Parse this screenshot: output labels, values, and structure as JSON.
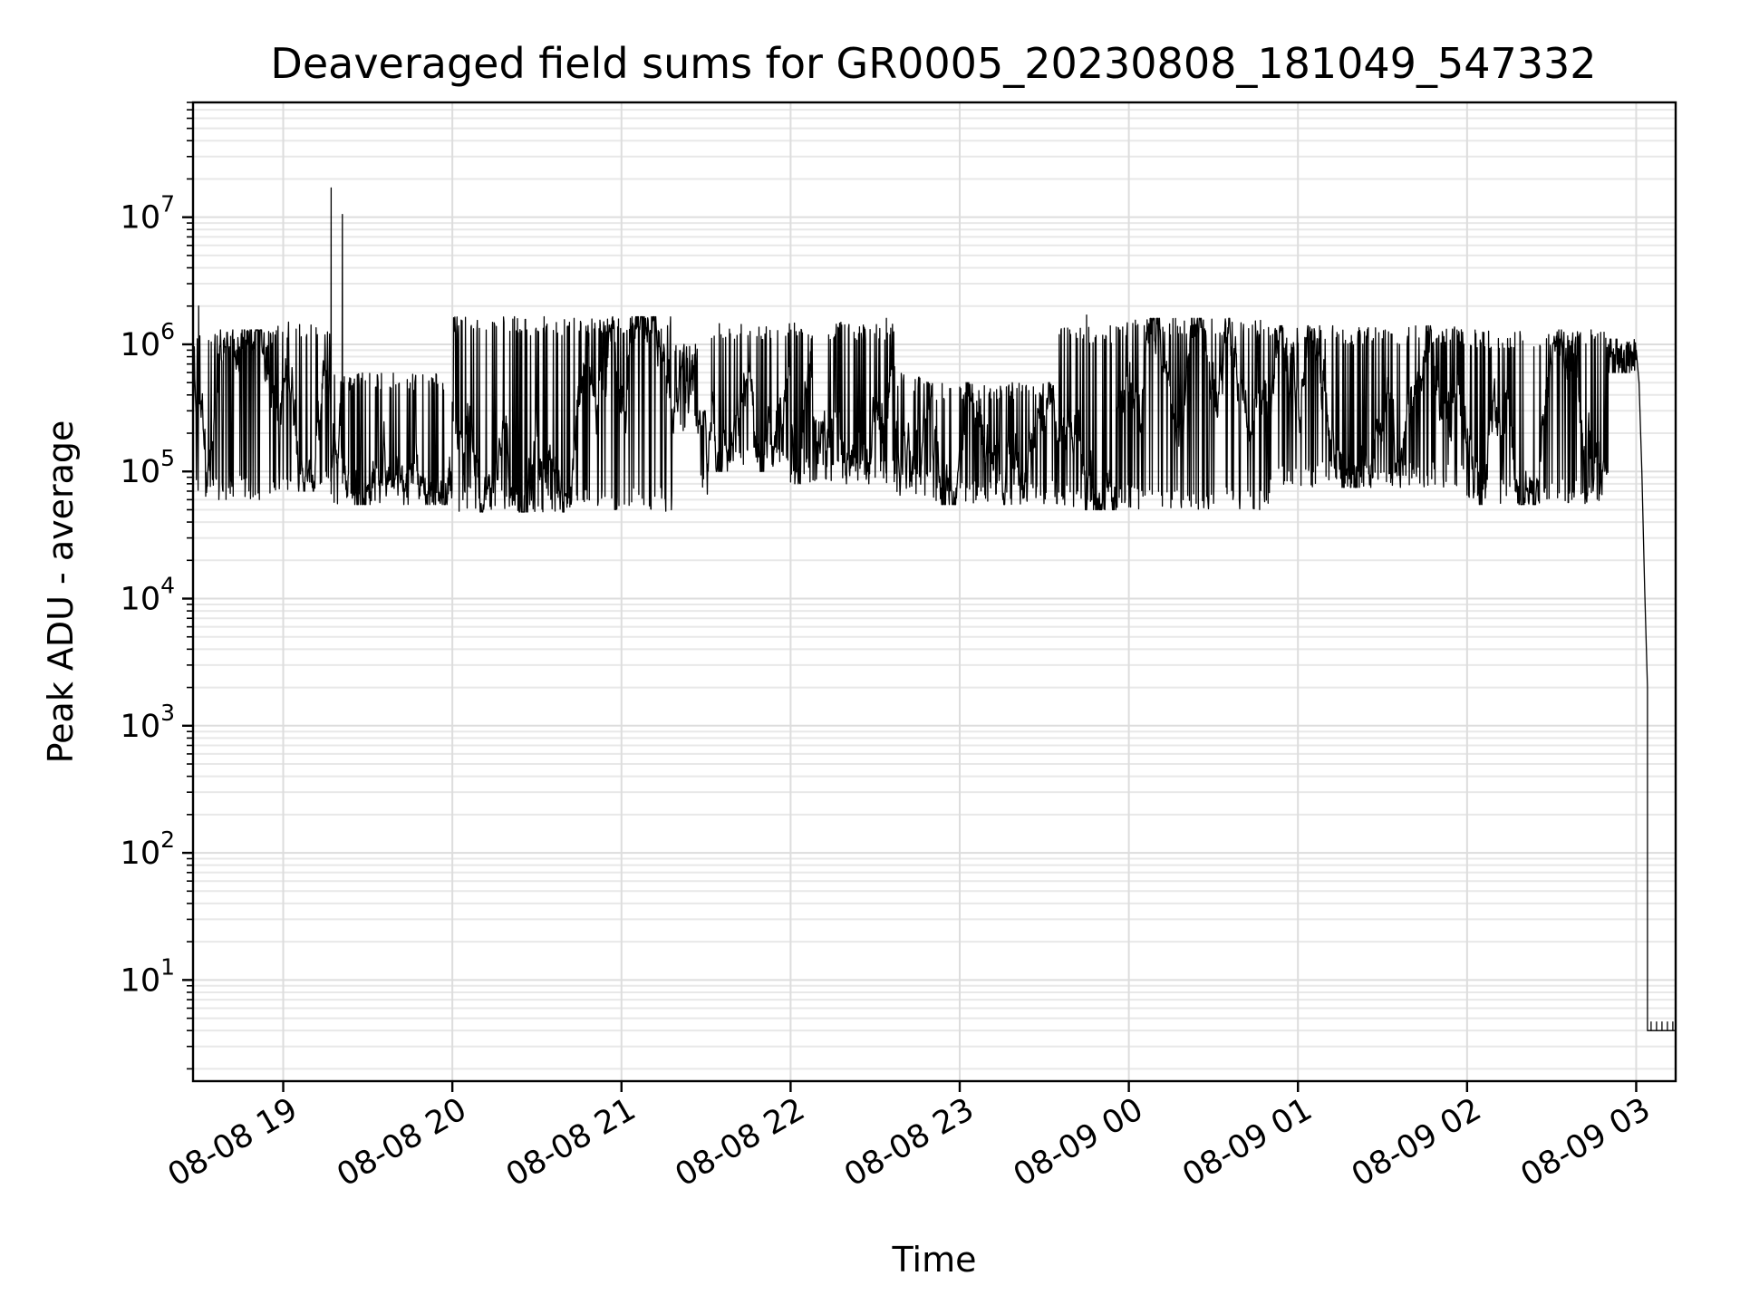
{
  "chart_data": {
    "type": "line",
    "title": "Deaveraged field sums for GR0005_20230808_181049_547332",
    "xlabel": "Time",
    "ylabel": "Peak ADU - average",
    "yscale": "log",
    "ylim": [
      1.6,
      80000000
    ],
    "xlim": [
      "2023-08-08 18:28",
      "2023-08-09 03:14"
    ],
    "grid": true,
    "x_ticks": [
      {
        "value": "2023-08-08 19:00",
        "label": "08-08 19"
      },
      {
        "value": "2023-08-08 20:00",
        "label": "08-08 20"
      },
      {
        "value": "2023-08-08 21:00",
        "label": "08-08 21"
      },
      {
        "value": "2023-08-08 22:00",
        "label": "08-08 22"
      },
      {
        "value": "2023-08-08 23:00",
        "label": "08-08 23"
      },
      {
        "value": "2023-08-09 00:00",
        "label": "08-09 00"
      },
      {
        "value": "2023-08-09 01:00",
        "label": "08-09 01"
      },
      {
        "value": "2023-08-09 02:00",
        "label": "08-09 02"
      },
      {
        "value": "2023-08-09 03:00",
        "label": "08-09 03"
      }
    ],
    "y_ticks": [
      {
        "value": 10,
        "base": "10",
        "exp": "1"
      },
      {
        "value": 100,
        "base": "10",
        "exp": "2"
      },
      {
        "value": 1000,
        "base": "10",
        "exp": "3"
      },
      {
        "value": 10000,
        "base": "10",
        "exp": "4"
      },
      {
        "value": 100000,
        "base": "10",
        "exp": "5"
      },
      {
        "value": 1000000,
        "base": "10",
        "exp": "6"
      },
      {
        "value": 10000000,
        "base": "10",
        "exp": "7"
      }
    ],
    "series": [
      {
        "color": "#000000",
        "segments": [
          {
            "start": "2023-08-08 18:28",
            "end": "2023-08-08 18:58",
            "low": 60000,
            "high": 1300000
          },
          {
            "start": "2023-08-08 18:58",
            "end": "2023-08-08 19:17",
            "low": 70000,
            "high": 1500000
          },
          {
            "start": "2023-08-08 19:17",
            "end": "2023-08-08 20:00",
            "low": 55000,
            "high": 600000
          },
          {
            "start": "2023-08-08 20:00",
            "end": "2023-08-08 21:18",
            "low": 48000,
            "high": 1650000
          },
          {
            "start": "2023-08-08 21:18",
            "end": "2023-08-08 21:27",
            "low": 200000,
            "high": 1000000
          },
          {
            "start": "2023-08-08 21:27",
            "end": "2023-08-08 21:32",
            "low": 60000,
            "high": 300000
          },
          {
            "start": "2023-08-08 21:32",
            "end": "2023-08-08 22:00",
            "low": 100000,
            "high": 1500000
          },
          {
            "start": "2023-08-08 22:00",
            "end": "2023-08-08 22:37",
            "low": 80000,
            "high": 1500000
          },
          {
            "start": "2023-08-08 22:37",
            "end": "2023-08-08 22:50",
            "low": 65000,
            "high": 600000
          },
          {
            "start": "2023-08-08 22:50",
            "end": "2023-08-08 23:35",
            "low": 55000,
            "high": 500000
          },
          {
            "start": "2023-08-08 23:35",
            "end": "2023-08-08 23:56",
            "low": 50000,
            "high": 1400000
          },
          {
            "start": "2023-08-08 23:56",
            "end": "2023-08-09 00:50",
            "low": 50000,
            "high": 1600000
          },
          {
            "start": "2023-08-09 00:50",
            "end": "2023-08-09 02:00",
            "low": 75000,
            "high": 1400000
          },
          {
            "start": "2023-08-09 02:00",
            "end": "2023-08-09 02:50",
            "low": 55000,
            "high": 1300000
          },
          {
            "start": "2023-08-09 02:50",
            "end": "2023-08-09 03:00",
            "low": 600000,
            "high": 1100000
          }
        ],
        "spikes": [
          {
            "x": "2023-08-08 18:30",
            "y": 2000000
          },
          {
            "x": "2023-08-08 19:17",
            "y": 17000000
          },
          {
            "x": "2023-08-08 19:21",
            "y": 10500000
          },
          {
            "x": "2023-08-08 22:34",
            "y": 1600000
          },
          {
            "x": "2023-08-08 23:45",
            "y": 1700000
          },
          {
            "x": "2023-08-09 02:44",
            "y": 1300000
          }
        ],
        "tail": [
          {
            "x": "2023-08-09 03:00",
            "y": 900000
          },
          {
            "x": "2023-08-09 03:01",
            "y": 500000
          },
          {
            "x": "2023-08-09 03:02",
            "y": 100000
          },
          {
            "x": "2023-08-09 03:03",
            "y": 12000
          },
          {
            "x": "2023-08-09 03:04",
            "y": 2000
          },
          {
            "x": "2023-08-09 03:04",
            "y": 4.0
          },
          {
            "x": "2023-08-09 03:14",
            "y": 4.0
          }
        ]
      }
    ]
  }
}
